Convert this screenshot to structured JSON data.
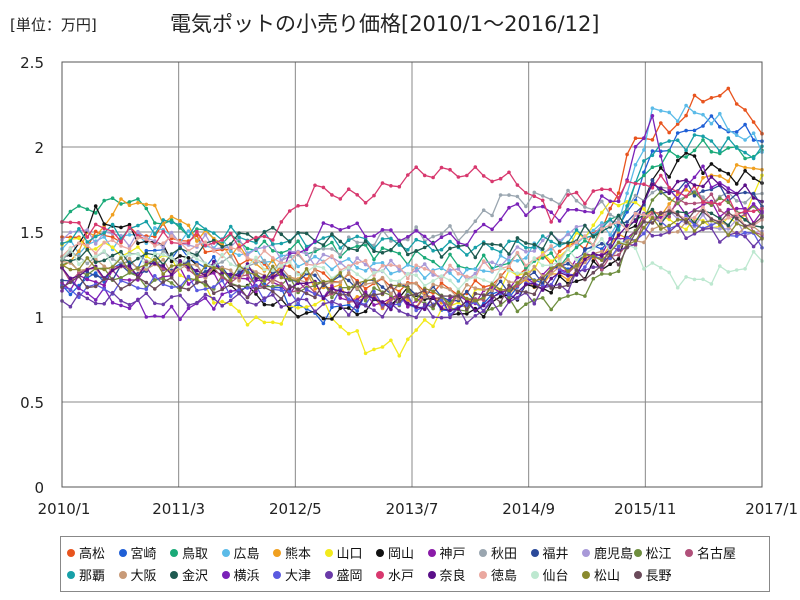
{
  "chart_data": {
    "type": "line",
    "title": "電気ポットの小売り価格[2010/1～2016/12]",
    "unit_label": "[単位：万円]",
    "xlabel": "",
    "ylabel": "",
    "ylim": [
      0,
      2.5
    ],
    "y_ticks": [
      "0",
      "0.5",
      "1",
      "1.5",
      "2",
      "2.5"
    ],
    "x_tick_labels": [
      "2010/1",
      "2011/3",
      "2012/5",
      "2013/7",
      "2014/9",
      "2015/11",
      "2017/1"
    ],
    "x_start": "2010/1",
    "n_points": 84,
    "grid": true,
    "legend_position": "bottom",
    "series": [
      {
        "name": "高松",
        "color": "#e8541e",
        "key": [
          [
            0,
            1.45
          ],
          [
            12,
            1.5
          ],
          [
            24,
            1.3
          ],
          [
            36,
            1.2
          ],
          [
            48,
            1.15
          ],
          [
            60,
            1.4
          ],
          [
            64,
            1.5
          ],
          [
            68,
            2.05
          ],
          [
            72,
            2.1
          ],
          [
            76,
            2.3
          ],
          [
            80,
            2.3
          ],
          [
            83,
            2.05
          ]
        ]
      },
      {
        "name": "宮崎",
        "color": "#1f5fd6",
        "key": [
          [
            0,
            1.15
          ],
          [
            12,
            1.4
          ],
          [
            24,
            1.2
          ],
          [
            30,
            1.0
          ],
          [
            36,
            1.1
          ],
          [
            48,
            1.05
          ],
          [
            60,
            1.3
          ],
          [
            66,
            1.5
          ],
          [
            70,
            1.95
          ],
          [
            76,
            2.15
          ],
          [
            80,
            2.1
          ],
          [
            83,
            2.05
          ]
        ]
      },
      {
        "name": "鳥取",
        "color": "#1aaa78",
        "key": [
          [
            0,
            1.6
          ],
          [
            8,
            1.7
          ],
          [
            12,
            1.55
          ],
          [
            24,
            1.4
          ],
          [
            36,
            1.4
          ],
          [
            48,
            1.3
          ],
          [
            60,
            1.35
          ],
          [
            66,
            1.6
          ],
          [
            70,
            1.9
          ],
          [
            76,
            2.0
          ],
          [
            83,
            1.95
          ]
        ]
      },
      {
        "name": "広島",
        "color": "#5bbbe8",
        "key": [
          [
            0,
            1.4
          ],
          [
            12,
            1.5
          ],
          [
            24,
            1.35
          ],
          [
            36,
            1.3
          ],
          [
            48,
            1.25
          ],
          [
            60,
            1.45
          ],
          [
            66,
            1.55
          ],
          [
            70,
            2.2
          ],
          [
            76,
            2.2
          ],
          [
            83,
            2.0
          ]
        ]
      },
      {
        "name": "熊本",
        "color": "#f0a020",
        "key": [
          [
            0,
            1.3
          ],
          [
            8,
            1.7
          ],
          [
            12,
            1.6
          ],
          [
            24,
            1.3
          ],
          [
            36,
            1.1
          ],
          [
            48,
            1.1
          ],
          [
            60,
            1.25
          ],
          [
            66,
            1.45
          ],
          [
            70,
            1.6
          ],
          [
            76,
            1.8
          ],
          [
            83,
            1.9
          ]
        ]
      },
      {
        "name": "山口",
        "color": "#f2ea1c",
        "key": [
          [
            0,
            1.45
          ],
          [
            12,
            1.35
          ],
          [
            20,
            1.05
          ],
          [
            24,
            0.95
          ],
          [
            30,
            1.1
          ],
          [
            36,
            0.82
          ],
          [
            40,
            0.82
          ],
          [
            44,
            1.0
          ],
          [
            48,
            1.1
          ],
          [
            60,
            1.4
          ],
          [
            66,
            1.7
          ],
          [
            72,
            1.55
          ],
          [
            80,
            1.55
          ],
          [
            83,
            1.8
          ]
        ]
      },
      {
        "name": "岡山",
        "color": "#111111",
        "key": [
          [
            0,
            1.3
          ],
          [
            4,
            1.6
          ],
          [
            12,
            1.4
          ],
          [
            24,
            1.1
          ],
          [
            30,
            1.0
          ],
          [
            36,
            1.05
          ],
          [
            42,
            1.15
          ],
          [
            48,
            1.0
          ],
          [
            54,
            1.15
          ],
          [
            60,
            1.2
          ],
          [
            66,
            1.35
          ],
          [
            70,
            1.8
          ],
          [
            74,
            1.95
          ],
          [
            78,
            1.85
          ],
          [
            83,
            1.8
          ]
        ]
      },
      {
        "name": "神戸",
        "color": "#8a1aa8",
        "key": [
          [
            0,
            1.2
          ],
          [
            12,
            1.25
          ],
          [
            24,
            1.2
          ],
          [
            36,
            1.1
          ],
          [
            48,
            1.1
          ],
          [
            60,
            1.3
          ],
          [
            66,
            1.45
          ],
          [
            70,
            1.6
          ],
          [
            76,
            1.65
          ],
          [
            83,
            1.6
          ]
        ]
      },
      {
        "name": "秋田",
        "color": "#9aa6b0",
        "key": [
          [
            0,
            1.35
          ],
          [
            12,
            1.35
          ],
          [
            24,
            1.3
          ],
          [
            36,
            1.45
          ],
          [
            48,
            1.5
          ],
          [
            52,
            1.7
          ],
          [
            60,
            1.7
          ],
          [
            66,
            1.6
          ],
          [
            70,
            1.75
          ],
          [
            76,
            1.7
          ],
          [
            83,
            1.7
          ]
        ]
      },
      {
        "name": "福井",
        "color": "#2b4a9a",
        "key": [
          [
            0,
            1.2
          ],
          [
            12,
            1.3
          ],
          [
            24,
            1.25
          ],
          [
            36,
            1.2
          ],
          [
            48,
            1.1
          ],
          [
            60,
            1.3
          ],
          [
            66,
            1.5
          ],
          [
            70,
            1.75
          ],
          [
            76,
            1.75
          ],
          [
            83,
            1.7
          ]
        ]
      },
      {
        "name": "鹿児島",
        "color": "#a899d8",
        "key": [
          [
            0,
            1.5
          ],
          [
            12,
            1.45
          ],
          [
            24,
            1.4
          ],
          [
            36,
            1.3
          ],
          [
            48,
            1.25
          ],
          [
            60,
            1.5
          ],
          [
            66,
            1.55
          ],
          [
            70,
            1.6
          ],
          [
            76,
            1.55
          ],
          [
            83,
            1.5
          ]
        ]
      },
      {
        "name": "松江",
        "color": "#6e8e3e",
        "key": [
          [
            0,
            1.3
          ],
          [
            12,
            1.2
          ],
          [
            24,
            1.2
          ],
          [
            36,
            1.15
          ],
          [
            48,
            1.05
          ],
          [
            60,
            1.1
          ],
          [
            66,
            1.3
          ],
          [
            70,
            1.7
          ],
          [
            76,
            1.7
          ],
          [
            83,
            1.6
          ]
        ]
      },
      {
        "name": "名古屋",
        "color": "#b0507a",
        "key": [
          [
            0,
            1.25
          ],
          [
            12,
            1.3
          ],
          [
            24,
            1.2
          ],
          [
            36,
            1.1
          ],
          [
            48,
            1.1
          ],
          [
            60,
            1.3
          ],
          [
            66,
            1.35
          ],
          [
            70,
            1.6
          ],
          [
            76,
            1.7
          ],
          [
            83,
            1.5
          ]
        ]
      },
      {
        "name": "那覇",
        "color": "#17a0a8",
        "key": [
          [
            0,
            1.45
          ],
          [
            12,
            1.55
          ],
          [
            24,
            1.45
          ],
          [
            36,
            1.45
          ],
          [
            48,
            1.4
          ],
          [
            60,
            1.45
          ],
          [
            66,
            1.55
          ],
          [
            70,
            2.0
          ],
          [
            76,
            2.05
          ],
          [
            83,
            1.95
          ]
        ]
      },
      {
        "name": "大阪",
        "color": "#c89a78",
        "key": [
          [
            0,
            1.3
          ],
          [
            12,
            1.3
          ],
          [
            24,
            1.25
          ],
          [
            36,
            1.2
          ],
          [
            48,
            1.15
          ],
          [
            60,
            1.3
          ],
          [
            66,
            1.4
          ],
          [
            70,
            1.5
          ],
          [
            76,
            1.55
          ],
          [
            83,
            1.5
          ]
        ]
      },
      {
        "name": "金沢",
        "color": "#1e5a50",
        "key": [
          [
            0,
            1.35
          ],
          [
            12,
            1.35
          ],
          [
            24,
            1.5
          ],
          [
            32,
            1.45
          ],
          [
            36,
            1.4
          ],
          [
            48,
            1.4
          ],
          [
            60,
            1.45
          ],
          [
            66,
            1.55
          ],
          [
            70,
            1.6
          ],
          [
            76,
            1.6
          ],
          [
            83,
            1.55
          ]
        ]
      },
      {
        "name": "横浜",
        "color": "#7a22b8",
        "key": [
          [
            0,
            1.2
          ],
          [
            12,
            1.0
          ],
          [
            24,
            1.2
          ],
          [
            32,
            1.55
          ],
          [
            36,
            1.5
          ],
          [
            48,
            1.45
          ],
          [
            54,
            1.65
          ],
          [
            60,
            1.6
          ],
          [
            66,
            1.7
          ],
          [
            70,
            2.2
          ],
          [
            72,
            1.7
          ],
          [
            76,
            1.85
          ],
          [
            83,
            1.6
          ]
        ]
      },
      {
        "name": "大津",
        "color": "#5a5ae0",
        "key": [
          [
            0,
            1.15
          ],
          [
            12,
            1.2
          ],
          [
            24,
            1.15
          ],
          [
            36,
            1.1
          ],
          [
            48,
            1.05
          ],
          [
            60,
            1.25
          ],
          [
            66,
            1.4
          ],
          [
            70,
            1.55
          ],
          [
            76,
            1.55
          ],
          [
            83,
            1.45
          ]
        ]
      },
      {
        "name": "盛岡",
        "color": "#6a3aa8",
        "key": [
          [
            0,
            1.1
          ],
          [
            12,
            1.1
          ],
          [
            24,
            1.1
          ],
          [
            36,
            1.05
          ],
          [
            48,
            1.0
          ],
          [
            60,
            1.2
          ],
          [
            66,
            1.4
          ],
          [
            70,
            1.5
          ],
          [
            76,
            1.5
          ],
          [
            83,
            1.45
          ]
        ]
      },
      {
        "name": "水戸",
        "color": "#d8386e",
        "key": [
          [
            0,
            1.55
          ],
          [
            12,
            1.45
          ],
          [
            24,
            1.45
          ],
          [
            30,
            1.75
          ],
          [
            36,
            1.7
          ],
          [
            42,
            1.85
          ],
          [
            48,
            1.85
          ],
          [
            54,
            1.8
          ],
          [
            58,
            1.6
          ],
          [
            60,
            1.7
          ],
          [
            66,
            1.75
          ],
          [
            70,
            1.8
          ],
          [
            76,
            1.7
          ],
          [
            83,
            1.6
          ]
        ]
      },
      {
        "name": "奈良",
        "color": "#5a0f88",
        "key": [
          [
            0,
            1.25
          ],
          [
            12,
            1.3
          ],
          [
            24,
            1.25
          ],
          [
            36,
            1.1
          ],
          [
            48,
            1.05
          ],
          [
            60,
            1.25
          ],
          [
            66,
            1.45
          ],
          [
            70,
            1.75
          ],
          [
            76,
            1.8
          ],
          [
            83,
            1.7
          ]
        ]
      },
      {
        "name": "徳島",
        "color": "#eaa8a0",
        "key": [
          [
            0,
            1.4
          ],
          [
            12,
            1.45
          ],
          [
            24,
            1.35
          ],
          [
            36,
            1.3
          ],
          [
            48,
            1.25
          ],
          [
            60,
            1.4
          ],
          [
            66,
            1.55
          ],
          [
            70,
            1.6
          ],
          [
            76,
            1.6
          ],
          [
            83,
            1.55
          ]
        ]
      },
      {
        "name": "仙台",
        "color": "#bde8d0",
        "key": [
          [
            0,
            1.35
          ],
          [
            12,
            1.35
          ],
          [
            24,
            1.3
          ],
          [
            36,
            1.25
          ],
          [
            48,
            1.2
          ],
          [
            60,
            1.35
          ],
          [
            66,
            1.45
          ],
          [
            70,
            1.3
          ],
          [
            74,
            1.2
          ],
          [
            78,
            1.25
          ],
          [
            83,
            1.35
          ]
        ]
      },
      {
        "name": "松山",
        "color": "#8a8a2e",
        "key": [
          [
            0,
            1.3
          ],
          [
            12,
            1.3
          ],
          [
            24,
            1.25
          ],
          [
            36,
            1.2
          ],
          [
            48,
            1.1
          ],
          [
            60,
            1.3
          ],
          [
            66,
            1.4
          ],
          [
            70,
            1.55
          ],
          [
            76,
            1.55
          ],
          [
            83,
            1.5
          ]
        ]
      },
      {
        "name": "長野",
        "color": "#6a4a5a",
        "key": [
          [
            0,
            1.2
          ],
          [
            12,
            1.2
          ],
          [
            24,
            1.15
          ],
          [
            36,
            1.15
          ],
          [
            48,
            1.1
          ],
          [
            60,
            1.2
          ],
          [
            66,
            1.35
          ],
          [
            70,
            1.6
          ],
          [
            76,
            1.6
          ],
          [
            83,
            1.55
          ]
        ]
      }
    ]
  }
}
